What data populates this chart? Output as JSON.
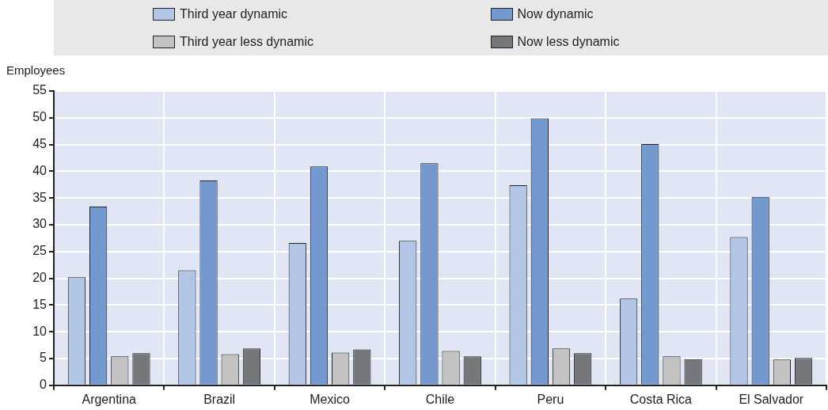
{
  "chart_data": {
    "type": "bar",
    "ylabel": "Employees",
    "categories": [
      "Argentina",
      "Brazil",
      "Mexico",
      "Chile",
      "Peru",
      "Costa Rica",
      "El Salvador"
    ],
    "series": [
      {
        "name": "Third year dynamic",
        "color": "#b3c6e7",
        "values": [
          20.2,
          21.5,
          26.6,
          27.0,
          37.4,
          16.2,
          27.7
        ]
      },
      {
        "name": "Now dynamic",
        "color": "#7399d0",
        "values": [
          33.4,
          38.3,
          40.9,
          41.5,
          49.9,
          45.1,
          35.2
        ]
      },
      {
        "name": "Third year less dynamic",
        "color": "#c3c3c4",
        "values": [
          5.4,
          5.8,
          6.1,
          6.4,
          6.9,
          5.4,
          4.8
        ]
      },
      {
        "name": "Now less dynamic",
        "color": "#76777b",
        "values": [
          6.0,
          6.9,
          6.7,
          5.4,
          6.0,
          4.9,
          5.1
        ]
      }
    ],
    "ylim": [
      0,
      55
    ],
    "yticks": [
      0,
      5,
      10,
      15,
      20,
      25,
      30,
      35,
      40,
      45,
      50,
      55
    ],
    "grid": true,
    "legend": "top"
  }
}
